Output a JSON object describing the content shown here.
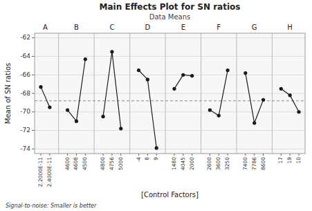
{
  "chart_data": {
    "type": "line",
    "title": "Main Effects Plot for SN ratios",
    "subtitle": "Data Means",
    "xlabel": "[Control Factors]",
    "ylabel": "Mean of SN ratios",
    "footnote": "Signal-to-noise: Smaller is better",
    "ylim": [
      -74.5,
      -61.5
    ],
    "yticks": [
      -74,
      -72,
      -70,
      -68,
      -66,
      -64,
      -62
    ],
    "grid": true,
    "marker": "circle",
    "color": "#1a1a1a",
    "grand_mean": -68.8,
    "groups": [
      {
        "label": "A",
        "categories": [
          "2.2000E-11",
          "2.4000E-11"
        ],
        "values": [
          -67.3,
          -69.5
        ]
      },
      {
        "label": "B",
        "categories": [
          "4600",
          "4608",
          "4500"
        ],
        "values": [
          -69.8,
          -71.0,
          -64.3
        ]
      },
      {
        "label": "C",
        "categories": [
          "4800",
          "4756",
          "5000"
        ],
        "values": [
          -70.5,
          -63.5,
          -71.8
        ]
      },
      {
        "label": "D",
        "categories": [
          "-4",
          "8",
          "9"
        ],
        "values": [
          -65.5,
          -66.5,
          -73.9
        ]
      },
      {
        "label": "E",
        "categories": [
          "1480",
          "4045",
          "2000"
        ],
        "values": [
          -67.5,
          -66.0,
          -66.1
        ]
      },
      {
        "label": "F",
        "categories": [
          "2600",
          "3600",
          "3250"
        ],
        "values": [
          -69.8,
          -70.4,
          -65.5
        ]
      },
      {
        "label": "G",
        "categories": [
          "7400",
          "7786",
          "8600"
        ],
        "values": [
          -65.8,
          -71.2,
          -68.7
        ]
      },
      {
        "label": "H",
        "categories": [
          "17",
          "19",
          "10"
        ],
        "values": [
          -67.5,
          -68.2,
          -70.0
        ]
      }
    ]
  }
}
